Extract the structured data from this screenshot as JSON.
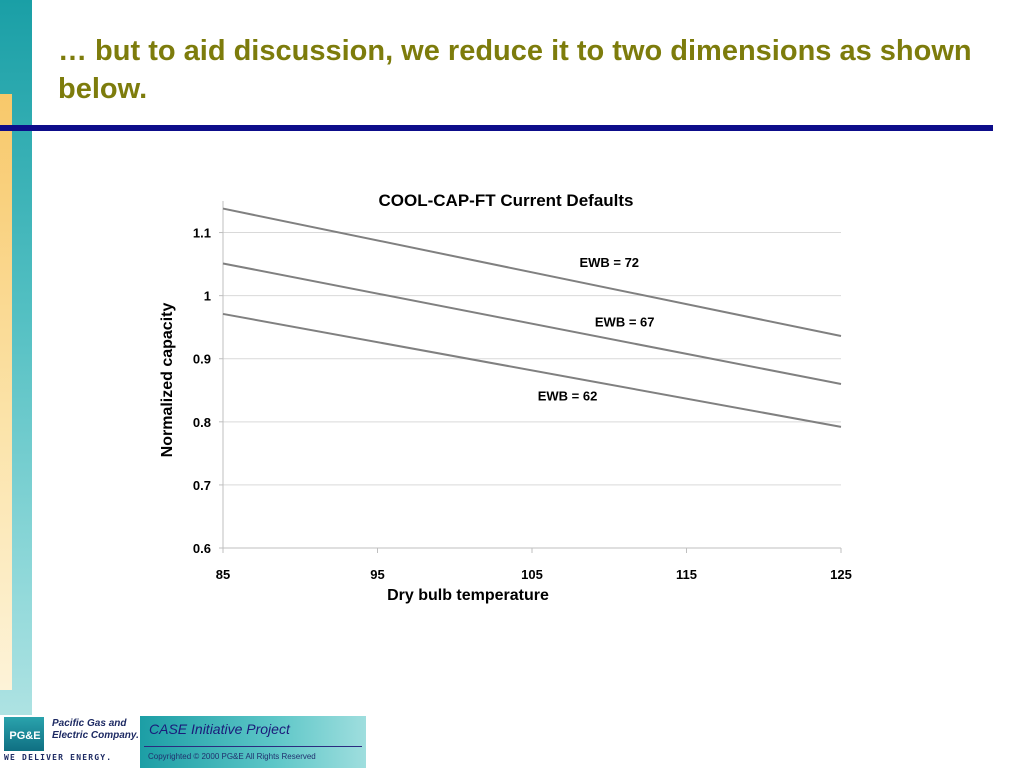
{
  "slide": {
    "title": "… but to aid discussion, we reduce it to two dimensions as shown below."
  },
  "chart_data": {
    "type": "line",
    "title": "COOL-CAP-FT Current Defaults",
    "xlabel": "Dry bulb temperature",
    "ylabel": "Normalized capacity",
    "xlim": [
      85,
      125
    ],
    "ylim": [
      0.6,
      1.15
    ],
    "x_ticks": [
      85,
      95,
      105,
      115,
      125
    ],
    "y_ticks": [
      0.6,
      0.7,
      0.8,
      0.9,
      1,
      1.1
    ],
    "y_tick_labels": [
      "0.6",
      "0.7",
      "0.8",
      "0.9",
      "1",
      "1.1"
    ],
    "grid": true,
    "line_color": "#808080",
    "series": [
      {
        "name": "EWB = 72",
        "x": [
          85,
          125
        ],
        "y": [
          1.138,
          0.936
        ],
        "label_at": [
          110,
          1.045
        ]
      },
      {
        "name": "EWB = 67",
        "x": [
          85,
          125
        ],
        "y": [
          1.051,
          0.86
        ],
        "label_at": [
          111,
          0.951
        ]
      },
      {
        "name": "EWB = 62",
        "x": [
          85,
          125
        ],
        "y": [
          0.971,
          0.792
        ],
        "label_at": [
          107.3,
          0.834
        ]
      }
    ]
  },
  "footer": {
    "logo_mark": "PG&E",
    "company_name": "Pacific Gas and Electric Company.",
    "tagline": "WE DELIVER ENERGY.",
    "project_name": "CASE Initiative Project",
    "copyright": "Copyrighted © 2000 PG&E All Rights Reserved"
  }
}
